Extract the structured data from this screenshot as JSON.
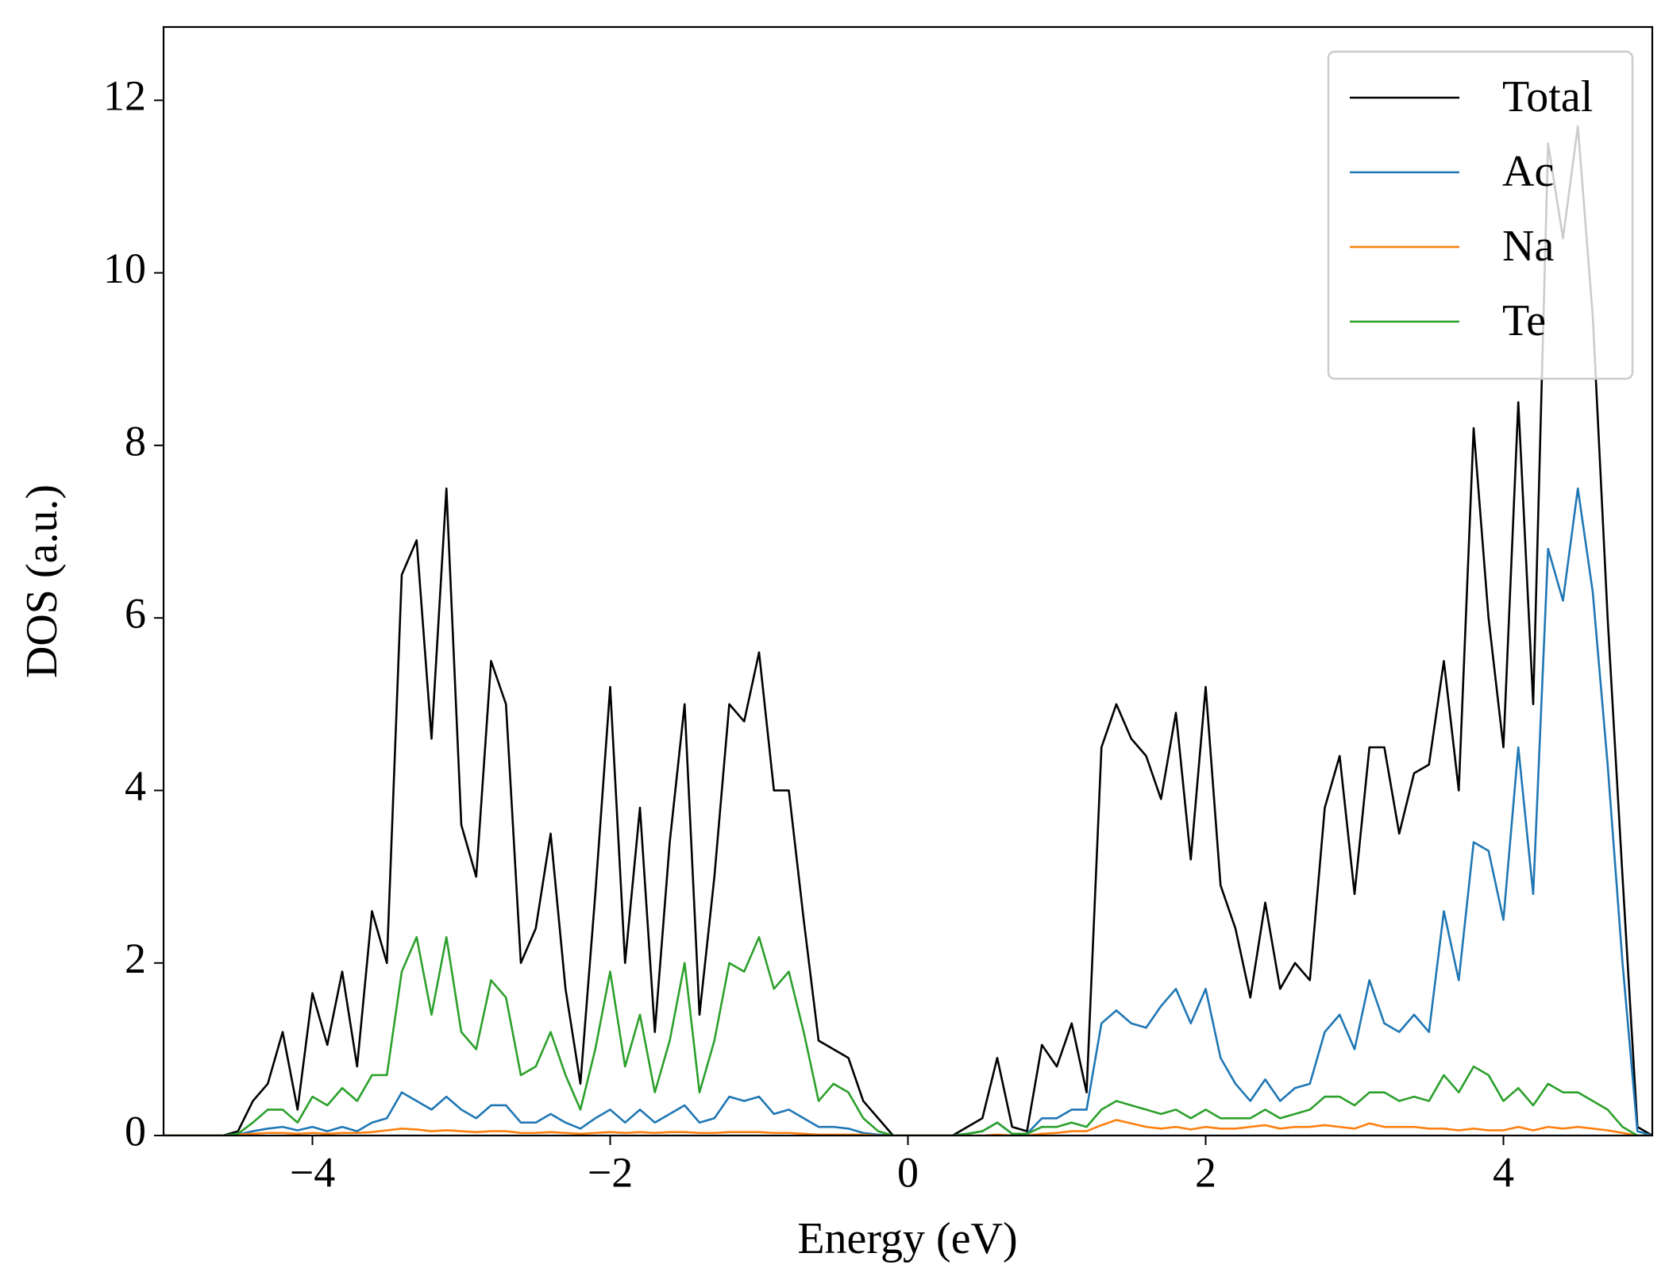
{
  "chart_data": {
    "type": "line",
    "x_label": "Energy (eV)",
    "y_label": "DOS (a.u.)",
    "xlim": [
      -5,
      5
    ],
    "ylim": [
      0,
      12.85
    ],
    "xticks": [
      {
        "value": -4,
        "label": "−4"
      },
      {
        "value": -2,
        "label": "−2"
      },
      0,
      2,
      4
    ],
    "yticks": [
      0,
      2,
      4,
      6,
      8,
      10,
      12
    ],
    "grid": false,
    "legend_position": "upper right",
    "x": [
      -5,
      -4.9,
      -4.8,
      -4.7,
      -4.6,
      -4.5,
      -4.4,
      -4.3,
      -4.2,
      -4.1,
      -4,
      -3.9,
      -3.8,
      -3.7,
      -3.6,
      -3.5,
      -3.4,
      -3.3,
      -3.2,
      -3.1,
      -3,
      -2.9,
      -2.8,
      -2.7,
      -2.6,
      -2.5,
      -2.4,
      -2.3,
      -2.2,
      -2.1,
      -2,
      -1.9,
      -1.8,
      -1.7,
      -1.6,
      -1.5,
      -1.4,
      -1.3,
      -1.2,
      -1.1,
      -1,
      -0.9,
      -0.8,
      -0.7,
      -0.6,
      -0.5,
      -0.4,
      -0.3,
      -0.2,
      -0.1,
      0,
      0.1,
      0.2,
      0.3,
      0.4,
      0.5,
      0.6,
      0.7,
      0.8,
      0.9,
      1,
      1.1,
      1.2,
      1.3,
      1.4,
      1.5,
      1.6,
      1.7,
      1.8,
      1.9,
      2,
      2.1,
      2.2,
      2.3,
      2.4,
      2.5,
      2.6,
      2.7,
      2.8,
      2.9,
      3,
      3.1,
      3.2,
      3.3,
      3.4,
      3.5,
      3.6,
      3.7,
      3.8,
      3.9,
      4,
      4.1,
      4.2,
      4.3,
      4.4,
      4.5,
      4.6,
      4.7,
      4.8,
      4.9,
      5
    ],
    "series": [
      {
        "name": "Total",
        "color": "#000000",
        "values": [
          0,
          0,
          0,
          0,
          0,
          0.05,
          0.4,
          0.6,
          1.2,
          0.3,
          1.65,
          1.05,
          1.9,
          0.8,
          2.6,
          2.0,
          6.5,
          6.9,
          4.6,
          7.5,
          3.6,
          3.0,
          5.5,
          5.0,
          2.0,
          2.4,
          3.5,
          1.7,
          0.6,
          2.8,
          5.2,
          2.0,
          3.8,
          1.2,
          3.4,
          5.0,
          1.4,
          3.0,
          5.0,
          4.8,
          5.6,
          4.0,
          4.0,
          2.5,
          1.1,
          1.0,
          0.9,
          0.4,
          0.2,
          0,
          0,
          0,
          0,
          0,
          0.1,
          0.2,
          0.9,
          0.1,
          0.05,
          1.05,
          0.8,
          1.3,
          0.5,
          4.5,
          5.0,
          4.6,
          4.4,
          3.9,
          4.9,
          3.2,
          5.2,
          2.9,
          2.4,
          1.6,
          2.7,
          1.7,
          2.0,
          1.8,
          3.8,
          4.4,
          2.8,
          4.5,
          4.5,
          3.5,
          4.2,
          4.3,
          5.5,
          4.0,
          8.2,
          6.0,
          4.5,
          8.5,
          5.0,
          11.5,
          10.4,
          11.7,
          9.5,
          6.0,
          3.0,
          0.1,
          0
        ]
      },
      {
        "name": "Ac",
        "color": "#1f77b4",
        "values": [
          0,
          0,
          0,
          0,
          0,
          0.01,
          0.05,
          0.08,
          0.1,
          0.06,
          0.1,
          0.05,
          0.1,
          0.05,
          0.15,
          0.2,
          0.5,
          0.4,
          0.3,
          0.45,
          0.3,
          0.2,
          0.35,
          0.35,
          0.15,
          0.15,
          0.25,
          0.15,
          0.08,
          0.2,
          0.3,
          0.15,
          0.3,
          0.15,
          0.25,
          0.35,
          0.15,
          0.2,
          0.45,
          0.4,
          0.45,
          0.25,
          0.3,
          0.2,
          0.1,
          0.1,
          0.08,
          0.03,
          0.01,
          0,
          0,
          0,
          0,
          0,
          0.02,
          0.05,
          0.15,
          0.02,
          0.02,
          0.2,
          0.2,
          0.3,
          0.3,
          1.3,
          1.45,
          1.3,
          1.25,
          1.5,
          1.7,
          1.3,
          1.7,
          0.9,
          0.6,
          0.4,
          0.65,
          0.4,
          0.55,
          0.6,
          1.2,
          1.4,
          1.0,
          1.8,
          1.3,
          1.2,
          1.4,
          1.2,
          2.6,
          1.8,
          3.4,
          3.3,
          2.5,
          4.5,
          2.8,
          6.8,
          6.2,
          7.5,
          6.3,
          4.3,
          2.0,
          0.05,
          0
        ]
      },
      {
        "name": "Na",
        "color": "#ff7f0e",
        "values": [
          0,
          0,
          0,
          0,
          0,
          0.01,
          0.02,
          0.03,
          0.03,
          0.02,
          0.03,
          0.02,
          0.03,
          0.03,
          0.04,
          0.06,
          0.08,
          0.07,
          0.05,
          0.06,
          0.05,
          0.04,
          0.05,
          0.05,
          0.03,
          0.03,
          0.04,
          0.03,
          0.02,
          0.03,
          0.04,
          0.03,
          0.04,
          0.03,
          0.04,
          0.04,
          0.03,
          0.03,
          0.04,
          0.04,
          0.04,
          0.03,
          0.03,
          0.02,
          0.01,
          0.01,
          0.01,
          0.01,
          0,
          0,
          0,
          0,
          0,
          0,
          0,
          0,
          0.01,
          0,
          0,
          0.02,
          0.03,
          0.05,
          0.05,
          0.12,
          0.18,
          0.14,
          0.1,
          0.08,
          0.1,
          0.07,
          0.1,
          0.08,
          0.08,
          0.1,
          0.12,
          0.08,
          0.1,
          0.1,
          0.12,
          0.1,
          0.08,
          0.14,
          0.1,
          0.1,
          0.1,
          0.08,
          0.08,
          0.06,
          0.08,
          0.06,
          0.06,
          0.1,
          0.06,
          0.1,
          0.08,
          0.1,
          0.08,
          0.06,
          0.03,
          0,
          0
        ]
      },
      {
        "name": "Te",
        "color": "#2ca02c",
        "values": [
          0,
          0,
          0,
          0,
          0,
          0.02,
          0.15,
          0.3,
          0.3,
          0.15,
          0.45,
          0.35,
          0.55,
          0.4,
          0.7,
          0.7,
          1.9,
          2.3,
          1.4,
          2.3,
          1.2,
          1.0,
          1.8,
          1.6,
          0.7,
          0.8,
          1.2,
          0.7,
          0.3,
          1.0,
          1.9,
          0.8,
          1.4,
          0.5,
          1.1,
          2.0,
          0.5,
          1.1,
          2.0,
          1.9,
          2.3,
          1.7,
          1.9,
          1.2,
          0.4,
          0.6,
          0.5,
          0.2,
          0.05,
          0,
          0,
          0,
          0,
          0,
          0.02,
          0.05,
          0.15,
          0.02,
          0.02,
          0.1,
          0.1,
          0.15,
          0.1,
          0.3,
          0.4,
          0.35,
          0.3,
          0.25,
          0.3,
          0.2,
          0.3,
          0.2,
          0.2,
          0.2,
          0.3,
          0.2,
          0.25,
          0.3,
          0.45,
          0.45,
          0.35,
          0.5,
          0.5,
          0.4,
          0.45,
          0.4,
          0.7,
          0.5,
          0.8,
          0.7,
          0.4,
          0.55,
          0.35,
          0.6,
          0.5,
          0.5,
          0.4,
          0.3,
          0.1,
          0,
          0
        ]
      }
    ]
  }
}
